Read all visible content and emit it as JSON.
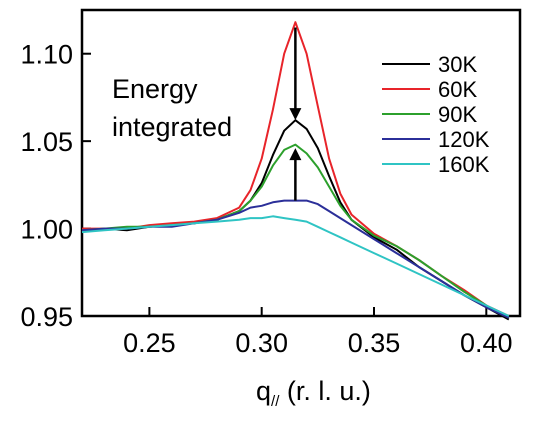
{
  "chart_data": {
    "type": "line",
    "title": "",
    "annotation_lines": [
      "Energy",
      "integrated"
    ],
    "xlabel": "q// (r. l. u.)",
    "xlabel_main": "q",
    "xlabel_sub": "//",
    "xlabel_rest": " (r. l. u.)",
    "ylabel": "",
    "xlim": [
      0.22,
      0.415
    ],
    "ylim": [
      0.95,
      1.125
    ],
    "xticks": [
      0.25,
      0.3,
      0.35,
      0.4
    ],
    "xtick_labels": [
      "0.25",
      "0.30",
      "0.35",
      "0.40"
    ],
    "yticks": [
      0.95,
      1.0,
      1.05,
      1.1
    ],
    "ytick_labels": [
      "0.95",
      "1.00",
      "1.05",
      "1.10"
    ],
    "grid": false,
    "legend_position": "top-right",
    "series": [
      {
        "name": "30K",
        "color": "#000000",
        "x": [
          0.22,
          0.23,
          0.24,
          0.25,
          0.26,
          0.27,
          0.28,
          0.29,
          0.295,
          0.3,
          0.305,
          0.31,
          0.315,
          0.32,
          0.325,
          0.33,
          0.335,
          0.34,
          0.35,
          0.36,
          0.37,
          0.38,
          0.39,
          0.4,
          0.41
        ],
        "y": [
          0.999,
          1.0,
          0.999,
          1.001,
          1.002,
          1.003,
          1.005,
          1.01,
          1.016,
          1.026,
          1.042,
          1.056,
          1.062,
          1.057,
          1.046,
          1.03,
          1.015,
          1.005,
          0.995,
          0.988,
          0.978,
          0.97,
          0.962,
          0.955,
          0.948
        ]
      },
      {
        "name": "60K",
        "color": "#e8242a",
        "x": [
          0.22,
          0.23,
          0.24,
          0.25,
          0.26,
          0.27,
          0.28,
          0.29,
          0.295,
          0.3,
          0.305,
          0.31,
          0.315,
          0.32,
          0.325,
          0.33,
          0.335,
          0.34,
          0.35,
          0.36,
          0.37,
          0.38,
          0.39,
          0.4,
          0.41
        ],
        "y": [
          1.0,
          1.0,
          1.0,
          1.002,
          1.003,
          1.004,
          1.006,
          1.012,
          1.022,
          1.04,
          1.068,
          1.1,
          1.118,
          1.1,
          1.07,
          1.04,
          1.02,
          1.008,
          0.997,
          0.99,
          0.982,
          0.973,
          0.965,
          0.956,
          0.95
        ]
      },
      {
        "name": "90K",
        "color": "#2ca02c",
        "x": [
          0.22,
          0.23,
          0.24,
          0.25,
          0.26,
          0.27,
          0.28,
          0.29,
          0.295,
          0.3,
          0.305,
          0.31,
          0.315,
          0.32,
          0.325,
          0.33,
          0.335,
          0.34,
          0.35,
          0.36,
          0.37,
          0.38,
          0.39,
          0.4,
          0.41
        ],
        "y": [
          0.999,
          1.0,
          1.001,
          1.001,
          1.002,
          1.003,
          1.005,
          1.01,
          1.016,
          1.024,
          1.036,
          1.045,
          1.048,
          1.043,
          1.035,
          1.024,
          1.013,
          1.005,
          0.996,
          0.99,
          0.982,
          0.973,
          0.964,
          0.956,
          0.949
        ]
      },
      {
        "name": "120K",
        "color": "#2b2f99",
        "x": [
          0.22,
          0.23,
          0.24,
          0.25,
          0.26,
          0.27,
          0.28,
          0.29,
          0.295,
          0.3,
          0.305,
          0.31,
          0.315,
          0.32,
          0.325,
          0.33,
          0.335,
          0.34,
          0.35,
          0.36,
          0.37,
          0.38,
          0.39,
          0.4,
          0.41
        ],
        "y": [
          0.999,
          1.0,
          1.0,
          1.001,
          1.001,
          1.003,
          1.005,
          1.009,
          1.012,
          1.013,
          1.015,
          1.016,
          1.016,
          1.016,
          1.014,
          1.01,
          1.006,
          1.002,
          0.994,
          0.986,
          0.978,
          0.97,
          0.962,
          0.955,
          0.949
        ]
      },
      {
        "name": "160K",
        "color": "#2fc4c4",
        "x": [
          0.22,
          0.23,
          0.24,
          0.25,
          0.26,
          0.27,
          0.28,
          0.29,
          0.295,
          0.3,
          0.305,
          0.31,
          0.315,
          0.32,
          0.325,
          0.33,
          0.335,
          0.34,
          0.35,
          0.36,
          0.37,
          0.38,
          0.39,
          0.4,
          0.41
        ],
        "y": [
          0.998,
          0.999,
          1.0,
          1.001,
          1.002,
          1.003,
          1.004,
          1.005,
          1.006,
          1.006,
          1.007,
          1.006,
          1.005,
          1.004,
          1.001,
          0.998,
          0.995,
          0.992,
          0.986,
          0.98,
          0.974,
          0.968,
          0.962,
          0.956,
          0.95
        ]
      }
    ],
    "arrows": [
      {
        "x": 0.315,
        "y_from": 1.115,
        "y_to": 1.062
      },
      {
        "x": 0.315,
        "y_from": 1.016,
        "y_to": 1.046
      }
    ]
  }
}
